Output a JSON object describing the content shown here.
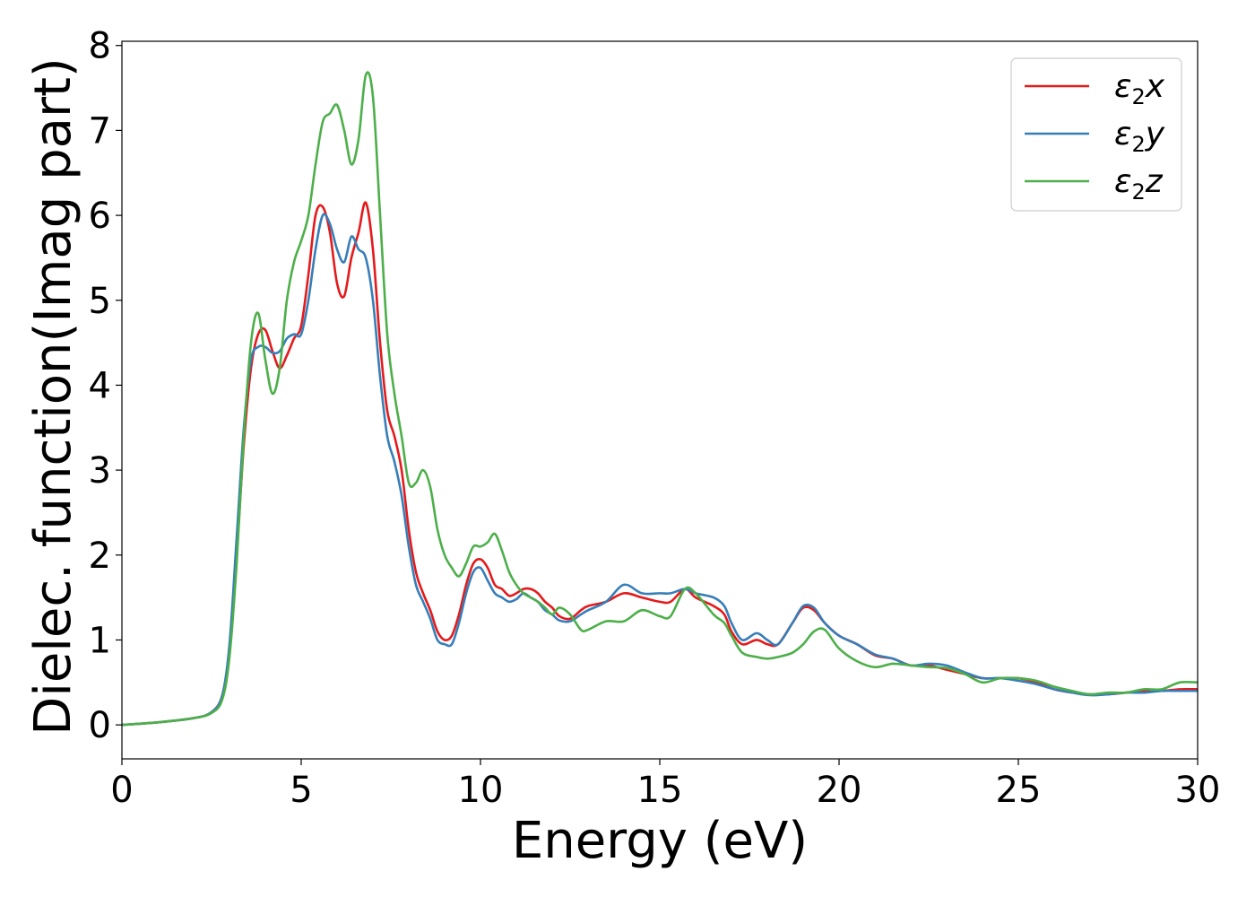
{
  "chart_data": {
    "type": "line",
    "title": "",
    "xlabel": "Energy (eV)",
    "ylabel": "Dielec. function(Imag part)",
    "xlim": [
      0,
      30
    ],
    "ylim": [
      -0.4,
      8.05
    ],
    "xticks": [
      0,
      5,
      10,
      15,
      20,
      25,
      30
    ],
    "yticks": [
      0,
      1,
      2,
      3,
      4,
      5,
      6,
      7,
      8
    ],
    "grid": false,
    "legend_position": "top-right",
    "series": [
      {
        "name": "ε₂x",
        "legend": {
          "base": "ε",
          "sub": "2",
          "var": "x"
        },
        "color": "#e41a1c",
        "x": [
          0,
          1,
          2,
          2.5,
          2.8,
          3.0,
          3.2,
          3.4,
          3.6,
          3.8,
          4.0,
          4.2,
          4.4,
          4.6,
          4.8,
          5.0,
          5.2,
          5.4,
          5.6,
          5.8,
          6.0,
          6.2,
          6.4,
          6.6,
          6.8,
          7.0,
          7.2,
          7.4,
          7.6,
          7.8,
          8.0,
          8.2,
          8.4,
          8.6,
          8.8,
          9.0,
          9.2,
          9.4,
          9.6,
          9.8,
          10.0,
          10.2,
          10.4,
          10.6,
          10.8,
          11.0,
          11.2,
          11.4,
          11.6,
          11.8,
          12.0,
          12.2,
          12.5,
          12.8,
          13.0,
          13.5,
          14.0,
          14.5,
          15.0,
          15.3,
          15.7,
          16.0,
          16.5,
          16.8,
          17.0,
          17.3,
          17.7,
          18.0,
          18.3,
          18.7,
          19.0,
          19.3,
          19.6,
          20.0,
          20.5,
          21.0,
          21.5,
          22.0,
          22.5,
          23.0,
          23.5,
          24.0,
          24.5,
          25.0,
          25.5,
          26.0,
          26.5,
          27.0,
          27.5,
          28.0,
          28.5,
          29.0,
          29.5,
          30.0
        ],
        "y": [
          0,
          0.03,
          0.08,
          0.15,
          0.35,
          0.9,
          2.0,
          3.3,
          4.2,
          4.6,
          4.65,
          4.4,
          4.2,
          4.35,
          4.55,
          4.7,
          5.3,
          6.0,
          6.1,
          5.8,
          5.2,
          5.05,
          5.5,
          5.8,
          6.15,
          5.6,
          4.5,
          3.7,
          3.4,
          3.0,
          2.3,
          1.8,
          1.55,
          1.35,
          1.1,
          1.0,
          1.05,
          1.3,
          1.65,
          1.9,
          1.95,
          1.85,
          1.65,
          1.6,
          1.52,
          1.55,
          1.6,
          1.6,
          1.55,
          1.45,
          1.38,
          1.28,
          1.25,
          1.35,
          1.4,
          1.45,
          1.55,
          1.5,
          1.45,
          1.45,
          1.6,
          1.5,
          1.4,
          1.3,
          1.1,
          0.95,
          1.0,
          0.95,
          0.95,
          1.2,
          1.38,
          1.35,
          1.2,
          1.05,
          0.95,
          0.82,
          0.78,
          0.7,
          0.7,
          0.65,
          0.6,
          0.55,
          0.55,
          0.55,
          0.5,
          0.42,
          0.38,
          0.36,
          0.36,
          0.38,
          0.4,
          0.4,
          0.42,
          0.42
        ]
      },
      {
        "name": "ε₂y",
        "legend": {
          "base": "ε",
          "sub": "2",
          "var": "y"
        },
        "color": "#377eb8",
        "x": [
          0,
          1,
          2,
          2.5,
          2.8,
          3.0,
          3.2,
          3.4,
          3.6,
          3.8,
          4.0,
          4.2,
          4.4,
          4.6,
          4.8,
          5.0,
          5.2,
          5.4,
          5.6,
          5.8,
          6.0,
          6.2,
          6.4,
          6.6,
          6.8,
          7.0,
          7.2,
          7.4,
          7.6,
          7.8,
          8.0,
          8.2,
          8.4,
          8.6,
          8.8,
          9.0,
          9.2,
          9.4,
          9.6,
          9.8,
          10.0,
          10.2,
          10.4,
          10.6,
          10.8,
          11.0,
          11.2,
          11.4,
          11.6,
          11.8,
          12.0,
          12.2,
          12.5,
          12.8,
          13.0,
          13.5,
          14.0,
          14.5,
          15.0,
          15.3,
          15.7,
          16.0,
          16.5,
          16.8,
          17.0,
          17.3,
          17.7,
          18.0,
          18.3,
          18.7,
          19.0,
          19.3,
          19.6,
          20.0,
          20.5,
          21.0,
          21.5,
          22.0,
          22.5,
          23.0,
          23.5,
          24.0,
          24.5,
          25.0,
          25.5,
          26.0,
          26.5,
          27.0,
          27.5,
          28.0,
          28.5,
          29.0,
          29.5,
          30.0
        ],
        "y": [
          0,
          0.03,
          0.08,
          0.15,
          0.35,
          0.95,
          2.2,
          3.5,
          4.3,
          4.45,
          4.45,
          4.38,
          4.4,
          4.55,
          4.6,
          4.6,
          5.0,
          5.6,
          6.0,
          5.9,
          5.6,
          5.45,
          5.75,
          5.6,
          5.5,
          5.0,
          4.1,
          3.4,
          3.1,
          2.7,
          2.1,
          1.65,
          1.45,
          1.25,
          1.0,
          0.95,
          0.95,
          1.2,
          1.55,
          1.8,
          1.85,
          1.7,
          1.55,
          1.5,
          1.45,
          1.48,
          1.55,
          1.5,
          1.45,
          1.35,
          1.3,
          1.23,
          1.22,
          1.3,
          1.35,
          1.45,
          1.65,
          1.55,
          1.55,
          1.55,
          1.6,
          1.55,
          1.5,
          1.4,
          1.2,
          1.0,
          1.08,
          1.0,
          0.95,
          1.2,
          1.4,
          1.38,
          1.2,
          1.05,
          0.95,
          0.83,
          0.78,
          0.7,
          0.72,
          0.7,
          0.62,
          0.55,
          0.55,
          0.52,
          0.48,
          0.42,
          0.38,
          0.35,
          0.36,
          0.38,
          0.38,
          0.4,
          0.4,
          0.4
        ]
      },
      {
        "name": "ε₂z",
        "legend": {
          "base": "ε",
          "sub": "2",
          "var": "z"
        },
        "color": "#4daf4a",
        "x": [
          0,
          1,
          2,
          2.5,
          2.8,
          3.0,
          3.2,
          3.4,
          3.6,
          3.8,
          4.0,
          4.2,
          4.4,
          4.6,
          4.8,
          5.0,
          5.2,
          5.4,
          5.6,
          5.8,
          6.0,
          6.2,
          6.4,
          6.6,
          6.8,
          7.0,
          7.2,
          7.4,
          7.6,
          7.8,
          8.0,
          8.2,
          8.4,
          8.6,
          8.8,
          9.0,
          9.2,
          9.4,
          9.6,
          9.8,
          10.0,
          10.2,
          10.4,
          10.6,
          10.8,
          11.0,
          11.2,
          11.4,
          11.6,
          11.8,
          12.0,
          12.2,
          12.5,
          12.8,
          13.0,
          13.5,
          14.0,
          14.5,
          15.0,
          15.3,
          15.7,
          16.0,
          16.5,
          16.8,
          17.0,
          17.3,
          17.7,
          18.0,
          18.3,
          18.7,
          19.0,
          19.3,
          19.6,
          20.0,
          20.5,
          21.0,
          21.5,
          22.0,
          22.5,
          23.0,
          23.5,
          24.0,
          24.5,
          25.0,
          25.5,
          26.0,
          26.5,
          27.0,
          27.5,
          28.0,
          28.5,
          29.0,
          29.5,
          30.0
        ],
        "y": [
          0,
          0.03,
          0.08,
          0.14,
          0.3,
          0.8,
          1.9,
          3.4,
          4.5,
          4.85,
          4.3,
          3.9,
          4.2,
          5.0,
          5.45,
          5.7,
          6.0,
          6.6,
          7.1,
          7.2,
          7.3,
          7.0,
          6.6,
          6.9,
          7.65,
          7.4,
          6.0,
          4.6,
          3.9,
          3.4,
          2.85,
          2.85,
          3.0,
          2.8,
          2.3,
          2.0,
          1.85,
          1.75,
          1.9,
          2.1,
          2.1,
          2.15,
          2.25,
          2.05,
          1.8,
          1.65,
          1.55,
          1.5,
          1.45,
          1.38,
          1.3,
          1.38,
          1.3,
          1.12,
          1.12,
          1.22,
          1.22,
          1.35,
          1.28,
          1.28,
          1.6,
          1.55,
          1.3,
          1.2,
          1.05,
          0.85,
          0.8,
          0.78,
          0.8,
          0.85,
          0.95,
          1.1,
          1.12,
          0.9,
          0.75,
          0.68,
          0.72,
          0.7,
          0.68,
          0.67,
          0.6,
          0.5,
          0.55,
          0.55,
          0.52,
          0.45,
          0.4,
          0.36,
          0.38,
          0.38,
          0.42,
          0.42,
          0.5,
          0.5
        ]
      }
    ]
  }
}
